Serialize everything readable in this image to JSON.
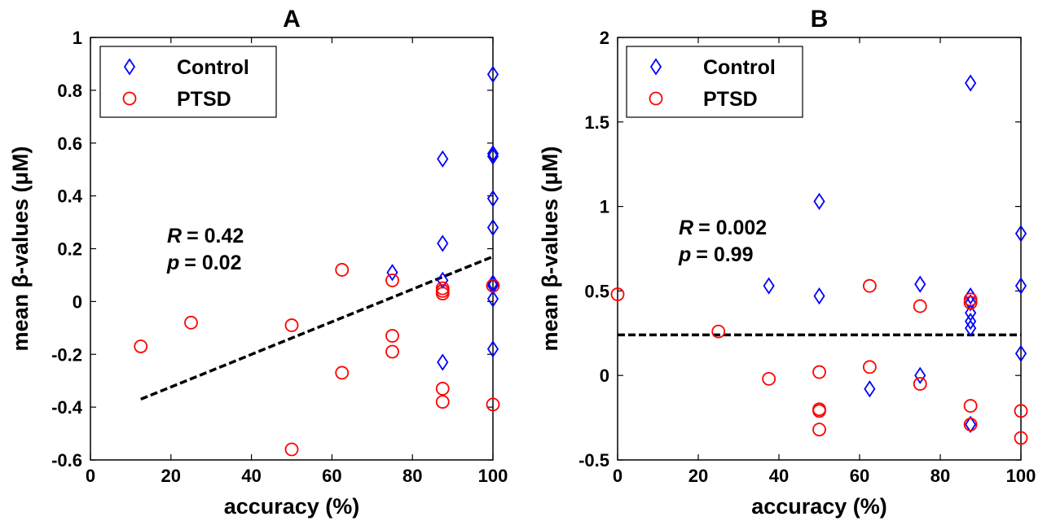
{
  "chart_data": [
    {
      "type": "scatter",
      "title": "A",
      "xlabel": "accuracy (%)",
      "ylabel": "mean β-values (μM)",
      "xlim": [
        0,
        100
      ],
      "ylim": [
        -0.6,
        1
      ],
      "xticks": [
        "0",
        "20",
        "40",
        "60",
        "80",
        "100"
      ],
      "yticks": [
        "-0.6",
        "-0.4",
        "-0.2",
        "0",
        "0.2",
        "0.4",
        "0.6",
        "0.8",
        "1"
      ],
      "legend": {
        "placement": "top-left",
        "entries": [
          "Control",
          "PTSD"
        ]
      },
      "series": [
        {
          "name": "Control",
          "marker": "diamond",
          "color": "#0000ff",
          "points": [
            [
              75,
              0.11
            ],
            [
              87.5,
              0.54
            ],
            [
              87.5,
              0.22
            ],
            [
              87.5,
              0.08
            ],
            [
              87.5,
              -0.23
            ],
            [
              100,
              0.86
            ],
            [
              100,
              0.56
            ],
            [
              100,
              0.55
            ],
            [
              100,
              0.39
            ],
            [
              100,
              0.28
            ],
            [
              100,
              0.07
            ],
            [
              100,
              0.06
            ],
            [
              100,
              0.01
            ],
            [
              100,
              -0.18
            ]
          ]
        },
        {
          "name": "PTSD",
          "marker": "circle",
          "color": "#ff0000",
          "points": [
            [
              12.5,
              -0.17
            ],
            [
              25,
              -0.08
            ],
            [
              50,
              -0.09
            ],
            [
              50,
              -0.56
            ],
            [
              62.5,
              0.12
            ],
            [
              62.5,
              -0.27
            ],
            [
              75,
              0.08
            ],
            [
              75,
              -0.13
            ],
            [
              75,
              -0.19
            ],
            [
              87.5,
              0.05
            ],
            [
              87.5,
              0.04
            ],
            [
              87.5,
              0.03
            ],
            [
              87.5,
              -0.33
            ],
            [
              87.5,
              -0.38
            ],
            [
              100,
              0.06
            ],
            [
              100,
              -0.39
            ]
          ]
        }
      ],
      "fit_line": {
        "x": [
          12.5,
          100
        ],
        "y": [
          -0.37,
          0.17
        ],
        "style": "dashed",
        "color": "#000000"
      },
      "annotation": {
        "r_label": "R",
        "r_value": "= 0.42",
        "p_label": "p",
        "p_value": "= 0.02"
      }
    },
    {
      "type": "scatter",
      "title": "B",
      "xlabel": "accuracy (%)",
      "ylabel": "mean β-values (μM)",
      "xlim": [
        0,
        100
      ],
      "ylim": [
        -0.5,
        2
      ],
      "xticks": [
        "0",
        "20",
        "40",
        "60",
        "80",
        "100"
      ],
      "yticks": [
        "-0.5",
        "0",
        "0.5",
        "1",
        "1.5",
        "2"
      ],
      "legend": {
        "placement": "top-left",
        "entries": [
          "Control",
          "PTSD"
        ]
      },
      "series": [
        {
          "name": "Control",
          "marker": "diamond",
          "color": "#0000ff",
          "points": [
            [
              37.5,
              0.53
            ],
            [
              50,
              1.03
            ],
            [
              50,
              0.47
            ],
            [
              62.5,
              -0.08
            ],
            [
              75,
              0.54
            ],
            [
              75,
              0.0
            ],
            [
              87.5,
              1.73
            ],
            [
              87.5,
              0.47
            ],
            [
              87.5,
              0.43
            ],
            [
              87.5,
              0.37
            ],
            [
              87.5,
              0.32
            ],
            [
              87.5,
              0.28
            ],
            [
              87.5,
              -0.29
            ],
            [
              100,
              0.84
            ],
            [
              100,
              0.53
            ],
            [
              100,
              0.13
            ]
          ]
        },
        {
          "name": "PTSD",
          "marker": "circle",
          "color": "#ff0000",
          "points": [
            [
              0,
              0.48
            ],
            [
              25,
              0.26
            ],
            [
              37.5,
              -0.02
            ],
            [
              50,
              0.02
            ],
            [
              50,
              -0.2
            ],
            [
              50,
              -0.21
            ],
            [
              50,
              -0.32
            ],
            [
              62.5,
              0.53
            ],
            [
              62.5,
              0.05
            ],
            [
              75,
              0.41
            ],
            [
              75,
              -0.05
            ],
            [
              87.5,
              0.45
            ],
            [
              87.5,
              0.43
            ],
            [
              87.5,
              -0.18
            ],
            [
              87.5,
              -0.29
            ],
            [
              100,
              -0.21
            ],
            [
              100,
              -0.37
            ]
          ]
        }
      ],
      "fit_line": {
        "x": [
          0,
          100
        ],
        "y": [
          0.24,
          0.24
        ],
        "style": "dashed",
        "color": "#000000"
      },
      "annotation": {
        "r_label": "R",
        "r_value": "= 0.002",
        "p_label": "p",
        "p_value": "= 0.99"
      }
    }
  ]
}
